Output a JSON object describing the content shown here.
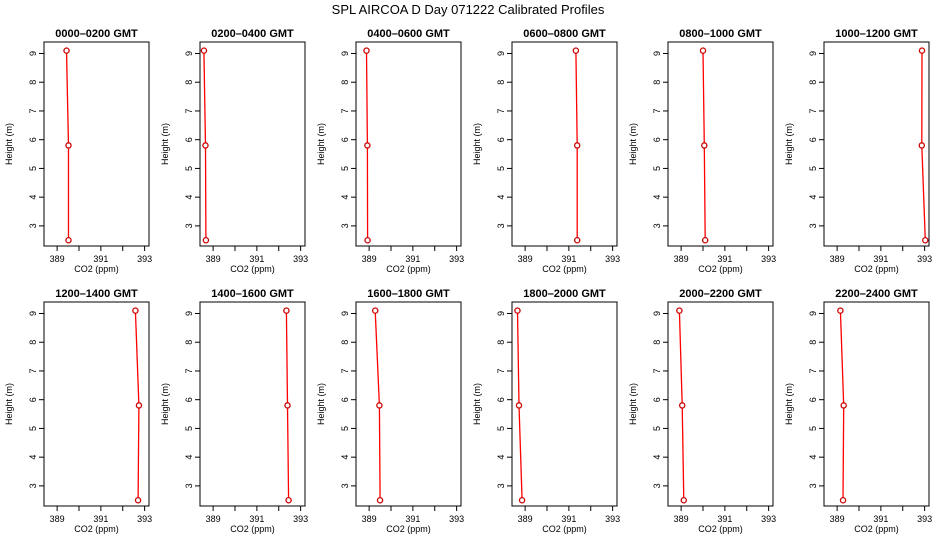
{
  "title": "SPL AIRCOA D  Day 071222  Calibrated Profiles",
  "chart_data": {
    "type": "line",
    "title": "SPL AIRCOA D  Day 071222  Calibrated Profiles",
    "xlabel": "CO2 (ppm)",
    "ylabel": "Height (m)",
    "xlim": [
      388.4,
      393.2
    ],
    "ylim": [
      2.3,
      9.4
    ],
    "x_ticks": [
      389,
      390,
      391,
      392,
      393
    ],
    "x_tick_labels": [
      "389",
      "391",
      "393"
    ],
    "y_ticks": [
      3,
      4,
      5,
      6,
      7,
      8,
      9
    ],
    "heights": [
      9.1,
      5.8,
      2.5
    ],
    "line_color": "#ff0000",
    "marker_color": "#cc0000",
    "grid": false,
    "panels": [
      {
        "title": "0000–0200 GMT",
        "co2": [
          389.43,
          389.52,
          389.52
        ]
      },
      {
        "title": "0200–0400 GMT",
        "co2": [
          388.58,
          388.65,
          388.67
        ]
      },
      {
        "title": "0400–0600 GMT",
        "co2": [
          388.88,
          388.92,
          388.93
        ]
      },
      {
        "title": "0600–0800 GMT",
        "co2": [
          391.32,
          391.38,
          391.38
        ]
      },
      {
        "title": "0800–1000 GMT",
        "co2": [
          390.0,
          390.06,
          390.1
        ]
      },
      {
        "title": "1000–1200 GMT",
        "co2": [
          392.88,
          392.87,
          393.03
        ]
      },
      {
        "title": "1200–1400 GMT",
        "co2": [
          392.58,
          392.74,
          392.7
        ]
      },
      {
        "title": "1400–1600 GMT",
        "co2": [
          392.35,
          392.4,
          392.45
        ]
      },
      {
        "title": "1600–1800 GMT",
        "co2": [
          389.28,
          389.47,
          389.5
        ]
      },
      {
        "title": "1800–2000 GMT",
        "co2": [
          388.65,
          388.72,
          388.86
        ]
      },
      {
        "title": "2000–2200 GMT",
        "co2": [
          388.92,
          389.05,
          389.12
        ]
      },
      {
        "title": "2200–2400 GMT",
        "co2": [
          389.15,
          389.3,
          389.27
        ]
      }
    ]
  }
}
